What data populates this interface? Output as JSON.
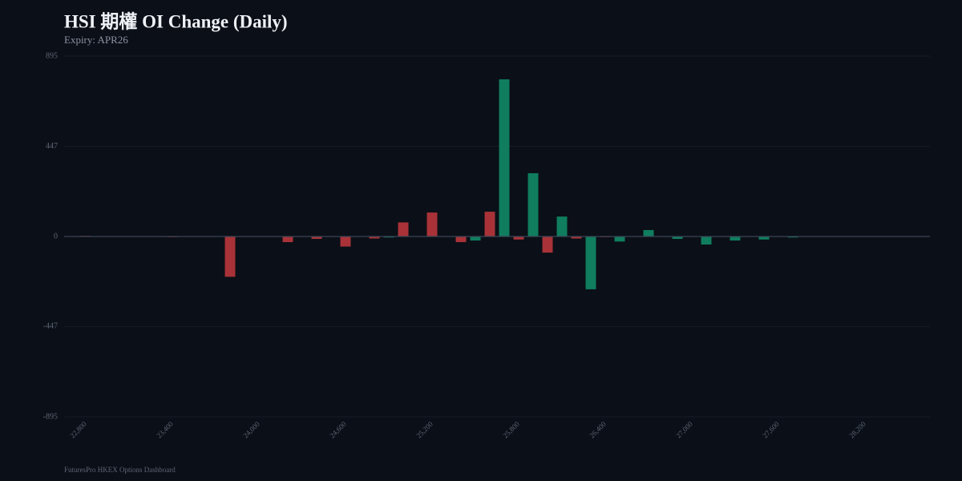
{
  "chart_data": {
    "type": "bar",
    "title": "HSI 期權 OI Change (Daily)",
    "subtitle": "Expiry: APR26",
    "footer": "FuturesPro HKEX Options Dashboard",
    "categories": [
      null,
      "22,800",
      null,
      null,
      null,
      null,
      null,
      "23,400",
      null,
      null,
      null,
      null,
      null,
      "24,000",
      null,
      null,
      null,
      null,
      null,
      "24,600",
      null,
      null,
      null,
      null,
      null,
      "25,200",
      null,
      null,
      null,
      null,
      null,
      "25,800",
      null,
      null,
      null,
      null,
      null,
      "26,400",
      null,
      null,
      null,
      null,
      null,
      "27,000",
      null,
      null,
      null,
      null,
      null,
      "27,600",
      null,
      null,
      null,
      null,
      null,
      "28,200",
      null,
      null,
      null,
      null
    ],
    "values": [
      0,
      3,
      0,
      0,
      0,
      0,
      0,
      -3,
      0,
      0,
      0,
      -200,
      0,
      -2,
      0,
      -28,
      0,
      -12,
      0,
      -50,
      2,
      -10,
      -5,
      70,
      0,
      119,
      2,
      -28,
      -20,
      123,
      780,
      -15,
      314,
      -80,
      99,
      -10,
      -262,
      -3,
      -25,
      0,
      32,
      0,
      -12,
      0,
      -40,
      0,
      -20,
      0,
      -15,
      0,
      -5,
      0,
      0,
      0,
      0,
      0,
      0,
      0,
      0,
      0
    ],
    "colors": [
      "#0f7d5e",
      "#a83238",
      "#0f7d5e",
      "#a83238",
      "#0f7d5e",
      "#a83238",
      "#0f7d5e",
      "#a83238",
      "#0f7d5e",
      "#a83238",
      "#0f7d5e",
      "#a83238",
      "#0f7d5e",
      "#a83238",
      "#0f7d5e",
      "#a83238",
      "#0f7d5e",
      "#a83238",
      "#0f7d5e",
      "#a83238",
      "#0f7d5e",
      "#a83238",
      "#0f7d5e",
      "#a83238",
      "#0f7d5e",
      "#a83238",
      "#0f7d5e",
      "#a83238",
      "#0f7d5e",
      "#a83238",
      "#0f7d5e",
      "#a83238",
      "#0f7d5e",
      "#a83238",
      "#0f7d5e",
      "#a83238",
      "#0f7d5e",
      "#a83238",
      "#0f7d5e",
      "#0f7d5e",
      "#0f7d5e",
      "#0f7d5e",
      "#0f7d5e",
      "#0f7d5e",
      "#0f7d5e",
      "#0f7d5e",
      "#0f7d5e",
      "#0f7d5e",
      "#0f7d5e",
      "#0f7d5e",
      "#0f7d5e",
      "#0f7d5e",
      "#0f7d5e",
      "#0f7d5e",
      "#0f7d5e",
      "#0f7d5e",
      "#0f7d5e",
      "#0f7d5e",
      "#0f7d5e",
      "#0f7d5e"
    ],
    "ylim": [
      -895,
      895
    ],
    "yticks": [
      -895,
      -447,
      0,
      447,
      895
    ],
    "grid": true
  }
}
